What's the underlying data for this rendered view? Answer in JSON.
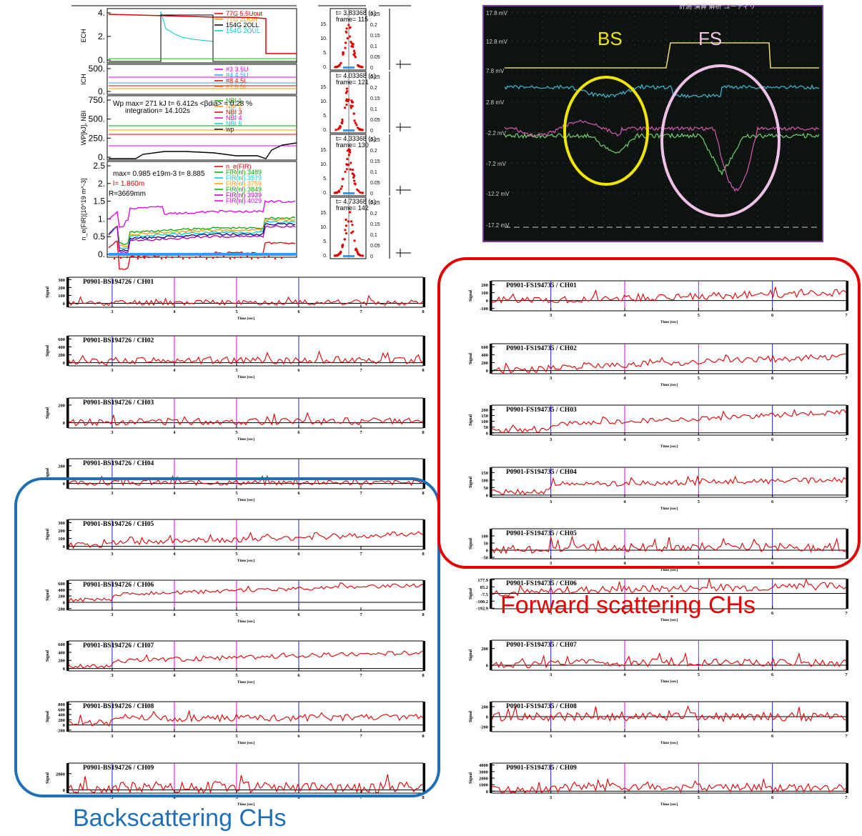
{
  "colors": {
    "signal": "#e00000",
    "marker_blue": "#2222cc",
    "marker_magenta": "#e000e0",
    "fs_box": "#e60000",
    "bs_box": "#1f6fb8",
    "scope_bg": "#0d1410",
    "scope_frame": "#7a3aa8",
    "bs_ellipse": "#f2e600",
    "fs_ellipse": "#f0c0e8"
  },
  "annotations": {
    "forward_label": "Forward scattering CHs",
    "back_label": "Backscattering CHs",
    "bs": "BS",
    "fs": "FS"
  },
  "overview": {
    "ech": {
      "ylabel": "ECH",
      "yticks": [
        "4.",
        "2.",
        "0."
      ],
      "legend": [
        "77G 5.5Uout",
        "77G 2OUR",
        "154G 2OLL",
        "154G 2OUL"
      ],
      "legend_colors": [
        "#e00000",
        "#ff9900",
        "#000000",
        "#00cccc"
      ]
    },
    "ich": {
      "ylabel": "ICH",
      "yticks": [
        "500.",
        "0."
      ],
      "legend": [
        "#3 3.5U",
        "#4 4.5U",
        "#8 4.5L",
        "#7.5 5L"
      ],
      "legend_colors": [
        "#e000e0",
        "#3399ff",
        "#e00000",
        "#ff9900"
      ]
    },
    "nbi": {
      "ylabel": "WP[kJ], NBI",
      "yticks": [
        "750.",
        "500.",
        "250.",
        "0."
      ],
      "text1": "Wp max= 271 kJ t= 6.412s <β",
      "text1b": "dia",
      "text1c": "> = 0.28 %",
      "text2": "integration= 14.102s",
      "legend": [
        "NBI 1",
        "NBI 2",
        "NBI 3",
        "NBI 4",
        "NBI 5",
        "wp"
      ],
      "legend_colors": [
        "#00aa00",
        "#ff9900",
        "#e00000",
        "#e000e0",
        "#00cccc",
        "#000000"
      ]
    },
    "fir": {
      "ylabel": "n_e(FIR)[10^19 m^-3]",
      "yticks": [
        "2.5",
        "2.",
        "1.5",
        "1.",
        "0.5",
        "0."
      ],
      "text1": "max= 0.985 e19m",
      "text1b": "-3",
      "text1c": " t= 8.885",
      "text2": "l= 1.860m",
      "text3": "R=3669mm",
      "legend": [
        "n_e(FIR)",
        "FIR(nl) 3489",
        "FIR(nl) 3579",
        "FIR(nl) 3759",
        "FIR(nl) 3849",
        "FIR(nl) 3939",
        "FIR(nl) 4029"
      ],
      "legend_colors": [
        "#e00000",
        "#00aa00",
        "#00cccc",
        "#ff9900",
        "#00aa00",
        "#aa00aa",
        "#e000e0"
      ]
    }
  },
  "frames": {
    "panels": [
      {
        "t": "t= 3.83368 (s)",
        "frame": "frame= 115"
      },
      {
        "t": "t= 4.03368 (s)",
        "frame": "frame= 121"
      },
      {
        "t": "t= 4.33368 (s)",
        "frame": "frame= 130"
      },
      {
        "t": "t= 4.73368 (s)",
        "frame": "frame= 142"
      }
    ],
    "left_ticks": [
      "15.",
      "10.",
      "5.",
      "0."
    ],
    "right_ticks": [
      "0.25",
      "0.2",
      "0.15",
      "0.1",
      "0.05",
      "0"
    ]
  },
  "scope": {
    "labels": [
      "17.8 mV",
      "12.8 mV",
      "7.8 mV",
      "2.8 mV",
      "-2.2 mV",
      "-7.2 mV",
      "-12.2 mV",
      "-17.2 mV"
    ],
    "menu": "計測   演算   解析   ユーティリ"
  },
  "chart_data": [
    {
      "type": "line",
      "group": "Backscattering",
      "title": "P0901-BS194726 / CH01",
      "xlabel": "Time [sec]",
      "ylabel": "Signal",
      "xlim": [
        2.3,
        8.0
      ],
      "x_ticks": [
        "3",
        "4",
        "5",
        "6",
        "7",
        "8"
      ],
      "y_ticks": [
        "300",
        "200",
        "100",
        "0"
      ],
      "ylim": [
        -50,
        330
      ],
      "baseline": 10,
      "trend": 0,
      "noise": 35,
      "seed": 11,
      "markers": [
        {
          "x": 3.0,
          "color": "blue"
        },
        {
          "x": 4.0,
          "color": "magenta"
        },
        {
          "x": 5.0,
          "color": "magenta"
        },
        {
          "x": 6.0,
          "color": "blue"
        }
      ]
    },
    {
      "type": "line",
      "group": "Backscattering",
      "title": "P0901-BS194726 / CH02",
      "xlabel": "Time [sec]",
      "ylabel": "Signal",
      "xlim": [
        2.3,
        8.0
      ],
      "x_ticks": [
        "3",
        "4",
        "5",
        "6",
        "7",
        "8"
      ],
      "y_ticks": [
        "600",
        "400",
        "200",
        "0"
      ],
      "ylim": [
        -80,
        680
      ],
      "baseline": 60,
      "trend": 0,
      "noise": 90,
      "seed": 12,
      "markers": [
        {
          "x": 3.0,
          "color": "blue"
        },
        {
          "x": 4.0,
          "color": "magenta"
        },
        {
          "x": 5.0,
          "color": "magenta"
        },
        {
          "x": 6.0,
          "color": "blue"
        }
      ]
    },
    {
      "type": "line",
      "group": "Backscattering",
      "title": "P0901-BS194726 / CH03",
      "xlabel": "Time [sec]",
      "ylabel": "Signal",
      "xlim": [
        2.3,
        8.0
      ],
      "x_ticks": [
        "3",
        "4",
        "5",
        "6",
        "7",
        "8"
      ],
      "y_ticks": [
        "200",
        "0"
      ],
      "ylim": [
        -60,
        280
      ],
      "baseline": 15,
      "trend": 0,
      "noise": 40,
      "seed": 13,
      "markers": [
        {
          "x": 3.0,
          "color": "blue"
        },
        {
          "x": 4.0,
          "color": "magenta"
        },
        {
          "x": 5.0,
          "color": "magenta"
        },
        {
          "x": 6.0,
          "color": "blue"
        }
      ]
    },
    {
      "type": "line",
      "group": "Backscattering",
      "title": "P0901-BS194726 / CH04",
      "xlabel": "Time [sec]",
      "ylabel": "Signal",
      "xlim": [
        2.3,
        8.0
      ],
      "x_ticks": [
        "3",
        "4",
        "5",
        "6",
        "7",
        "8"
      ],
      "y_ticks": [
        "200",
        "0"
      ],
      "ylim": [
        -60,
        280
      ],
      "baseline": 10,
      "trend": 0,
      "noise": 30,
      "seed": 14,
      "markers": [
        {
          "x": 3.0,
          "color": "blue"
        },
        {
          "x": 4.0,
          "color": "magenta"
        },
        {
          "x": 5.0,
          "color": "magenta"
        },
        {
          "x": 6.0,
          "color": "blue"
        }
      ]
    },
    {
      "type": "line",
      "group": "Backscattering",
      "title": "P0901-BS194726 / CH05",
      "xlabel": "Time [sec]",
      "ylabel": "Signal",
      "xlim": [
        2.3,
        8.0
      ],
      "x_ticks": [
        "3",
        "4",
        "5",
        "6",
        "7",
        "8"
      ],
      "y_ticks": [
        "300",
        "200",
        "100",
        "0"
      ],
      "ylim": [
        -40,
        340
      ],
      "baseline": 40,
      "trend": 120,
      "noise": 35,
      "seed": 15,
      "markers": [
        {
          "x": 3.0,
          "color": "blue"
        },
        {
          "x": 4.0,
          "color": "magenta"
        },
        {
          "x": 5.0,
          "color": "magenta"
        },
        {
          "x": 6.0,
          "color": "blue"
        }
      ]
    },
    {
      "type": "line",
      "group": "Backscattering",
      "title": "P0901-BS194726 / CH06",
      "xlabel": "Time [sec]",
      "ylabel": "Signal",
      "xlim": [
        2.3,
        8.0
      ],
      "x_ticks": [
        "3",
        "4",
        "5",
        "6",
        "7",
        "8"
      ],
      "y_ticks": [
        "600",
        "400",
        "200",
        "0",
        "-200"
      ],
      "ylim": [
        -250,
        700
      ],
      "baseline": 250,
      "trend": 300,
      "noise": 60,
      "seed": 16,
      "markers": [
        {
          "x": 3.0,
          "color": "blue"
        },
        {
          "x": 4.0,
          "color": "magenta"
        },
        {
          "x": 5.0,
          "color": "magenta"
        },
        {
          "x": 6.0,
          "color": "blue"
        }
      ]
    },
    {
      "type": "line",
      "group": "Backscattering",
      "title": "P0901-BS194726 / CH07",
      "xlabel": "Time [sec]",
      "ylabel": "Signal",
      "xlim": [
        2.3,
        8.0
      ],
      "x_ticks": [
        "3",
        "4",
        "5",
        "6",
        "7",
        "8"
      ],
      "y_ticks": [
        "600",
        "400",
        "200",
        "0"
      ],
      "ylim": [
        -60,
        680
      ],
      "baseline": 180,
      "trend": 220,
      "noise": 55,
      "seed": 17,
      "markers": [
        {
          "x": 3.0,
          "color": "blue"
        },
        {
          "x": 4.0,
          "color": "magenta"
        },
        {
          "x": 5.0,
          "color": "magenta"
        },
        {
          "x": 6.0,
          "color": "blue"
        }
      ]
    },
    {
      "type": "line",
      "group": "Backscattering",
      "title": "P0901-BS194726 / CH08",
      "xlabel": "Time [sec]",
      "ylabel": "Signal",
      "xlim": [
        2.3,
        8.0
      ],
      "x_ticks": [
        "3",
        "4",
        "5",
        "6",
        "7",
        "8"
      ],
      "y_ticks": [
        "800",
        "600",
        "400",
        "200",
        "0",
        "-200"
      ],
      "ylim": [
        -260,
        900
      ],
      "baseline": 250,
      "trend": 50,
      "noise": 130,
      "seed": 18,
      "markers": [
        {
          "x": 3.0,
          "color": "blue"
        },
        {
          "x": 4.0,
          "color": "magenta"
        },
        {
          "x": 5.0,
          "color": "magenta"
        },
        {
          "x": 6.0,
          "color": "blue"
        }
      ]
    },
    {
      "type": "line",
      "group": "Backscattering",
      "title": "P0901-BS194726 / CH09",
      "xlabel": "Time [sec]",
      "ylabel": "Signal",
      "xlim": [
        2.3,
        8.0
      ],
      "x_ticks": [
        "3",
        "4",
        "5",
        "6",
        "7",
        "8"
      ],
      "y_ticks": [
        "2000",
        "0"
      ],
      "ylim": [
        -400,
        3300
      ],
      "baseline": 300,
      "trend": 0,
      "noise": 700,
      "seed": 19,
      "markers": [
        {
          "x": 3.0,
          "color": "blue"
        },
        {
          "x": 4.0,
          "color": "magenta"
        },
        {
          "x": 5.0,
          "color": "magenta"
        },
        {
          "x": 6.0,
          "color": "blue"
        }
      ]
    },
    {
      "type": "line",
      "group": "Forward scattering",
      "title": "P0901-FS194735 / CH01",
      "xlabel": "Time [sec]",
      "ylabel": "Signal",
      "xlim": [
        2.2,
        7.0
      ],
      "x_ticks": [
        "3",
        "4",
        "5",
        "6",
        "7"
      ],
      "y_ticks": [
        "200",
        "100",
        "0",
        "-100"
      ],
      "ylim": [
        -130,
        250
      ],
      "baseline": 10,
      "trend": 90,
      "noise": 45,
      "seed": 21,
      "markers": [
        {
          "x": 3.0,
          "color": "blue"
        },
        {
          "x": 4.0,
          "color": "magenta"
        },
        {
          "x": 5.0,
          "color": "magenta"
        },
        {
          "x": 6.0,
          "color": "blue"
        }
      ]
    },
    {
      "type": "line",
      "group": "Forward scattering",
      "title": "P0901-FS194735 / CH02",
      "xlabel": "Time [sec]",
      "ylabel": "Signal",
      "xlim": [
        2.2,
        7.0
      ],
      "x_ticks": [
        "3",
        "4",
        "5",
        "6",
        "7"
      ],
      "y_ticks": [
        "600",
        "400",
        "200",
        "0"
      ],
      "ylim": [
        -80,
        680
      ],
      "baseline": 80,
      "trend": 280,
      "noise": 80,
      "seed": 22,
      "markers": [
        {
          "x": 3.0,
          "color": "blue"
        },
        {
          "x": 4.0,
          "color": "magenta"
        },
        {
          "x": 5.0,
          "color": "magenta"
        },
        {
          "x": 6.0,
          "color": "blue"
        }
      ]
    },
    {
      "type": "line",
      "group": "Forward scattering",
      "title": "P0901-FS194735 / CH03",
      "xlabel": "Time [sec]",
      "ylabel": "Signal",
      "xlim": [
        2.2,
        7.0
      ],
      "x_ticks": [
        "3",
        "4",
        "5",
        "6",
        "7"
      ],
      "y_ticks": [
        "200",
        "150",
        "100",
        "50",
        "0"
      ],
      "ylim": [
        -20,
        240
      ],
      "baseline": 70,
      "trend": 110,
      "noise": 22,
      "seed": 23,
      "markers": [
        {
          "x": 3.0,
          "color": "blue"
        },
        {
          "x": 4.0,
          "color": "magenta"
        },
        {
          "x": 5.0,
          "color": "magenta"
        },
        {
          "x": 6.0,
          "color": "blue"
        }
      ]
    },
    {
      "type": "line",
      "group": "Forward scattering",
      "title": "P0901-FS194735 / CH04",
      "xlabel": "Time [sec]",
      "ylabel": "Signal",
      "xlim": [
        2.2,
        7.0
      ],
      "x_ticks": [
        "3",
        "4",
        "5",
        "6",
        "7"
      ],
      "y_ticks": [
        "150",
        "100",
        "50",
        "0"
      ],
      "ylim": [
        -15,
        185
      ],
      "baseline": 70,
      "trend": 30,
      "noise": 18,
      "seed": 24,
      "markers": [
        {
          "x": 3.0,
          "color": "blue"
        },
        {
          "x": 4.0,
          "color": "magenta"
        },
        {
          "x": 5.0,
          "color": "magenta"
        },
        {
          "x": 6.0,
          "color": "blue"
        }
      ]
    },
    {
      "type": "line",
      "group": "Forward scattering",
      "title": "P0901-FS194735 / CH05",
      "xlabel": "Time [sec]",
      "ylabel": "Signal",
      "xlim": [
        2.2,
        7.0
      ],
      "x_ticks": [
        "3",
        "4",
        "5",
        "6",
        "7"
      ],
      "y_ticks": [
        "100",
        "50",
        "0",
        "-50"
      ],
      "ylim": [
        -60,
        150
      ],
      "baseline": 20,
      "trend": 0,
      "noise": 30,
      "seed": 25,
      "markers": [
        {
          "x": 3.0,
          "color": "blue"
        },
        {
          "x": 4.0,
          "color": "magenta"
        },
        {
          "x": 5.0,
          "color": "magenta"
        },
        {
          "x": 6.0,
          "color": "blue"
        }
      ]
    },
    {
      "type": "line",
      "group": "Forward scattering",
      "title": "P0901-FS194735 / CH06",
      "xlabel": "Time [sec]",
      "ylabel": "Signal",
      "xlim": [
        2.2,
        7.0
      ],
      "x_ticks": [
        "3",
        "4",
        "5",
        "6",
        "7"
      ],
      "y_ticks": [
        "177.9",
        "85.2",
        "-7.5",
        "-100.2",
        "-192.9"
      ],
      "ylim": [
        -200,
        190
      ],
      "baseline": 40,
      "trend": 60,
      "noise": 50,
      "seed": 26,
      "markers": [
        {
          "x": 3.0,
          "color": "blue"
        },
        {
          "x": 4.0,
          "color": "magenta"
        },
        {
          "x": 5.0,
          "color": "magenta"
        },
        {
          "x": 6.0,
          "color": "blue"
        }
      ]
    },
    {
      "type": "line",
      "group": "Forward scattering",
      "title": "P0901-FS194735 / CH07",
      "xlabel": "Time [sec]",
      "ylabel": "Signal",
      "xlim": [
        2.2,
        7.0
      ],
      "x_ticks": [
        "3",
        "4",
        "5",
        "6",
        "7"
      ],
      "y_ticks": [
        "200",
        "0"
      ],
      "ylim": [
        -60,
        300
      ],
      "baseline": 30,
      "trend": 0,
      "noise": 45,
      "seed": 27,
      "markers": [
        {
          "x": 3.0,
          "color": "blue"
        },
        {
          "x": 4.0,
          "color": "magenta"
        },
        {
          "x": 5.0,
          "color": "magenta"
        },
        {
          "x": 6.0,
          "color": "blue"
        }
      ]
    },
    {
      "type": "line",
      "group": "Forward scattering",
      "title": "P0901-FS194735 / CH08",
      "xlabel": "Time [sec]",
      "ylabel": "Signal",
      "xlim": [
        2.2,
        7.0
      ],
      "x_ticks": [
        "3",
        "4",
        "5",
        "6",
        "7"
      ],
      "y_ticks": [
        "200",
        "0",
        "-200"
      ],
      "ylim": [
        -300,
        300
      ],
      "baseline": 0,
      "trend": 0,
      "noise": 90,
      "seed": 28,
      "markers": [
        {
          "x": 3.0,
          "color": "blue"
        },
        {
          "x": 4.0,
          "color": "magenta"
        },
        {
          "x": 5.0,
          "color": "magenta"
        },
        {
          "x": 6.0,
          "color": "blue"
        }
      ]
    },
    {
      "type": "line",
      "group": "Forward scattering",
      "title": "P0901-FS194735 / CH09",
      "xlabel": "Time [sec]",
      "ylabel": "Signal",
      "xlim": [
        2.2,
        7.0
      ],
      "x_ticks": [
        "3",
        "4",
        "5",
        "6",
        "7"
      ],
      "y_ticks": [
        "4000",
        "3000",
        "2000",
        "1000",
        "0"
      ],
      "ylim": [
        -300,
        4300
      ],
      "baseline": 500,
      "trend": 0,
      "noise": 600,
      "seed": 29,
      "markers": [
        {
          "x": 3.0,
          "color": "blue"
        },
        {
          "x": 4.0,
          "color": "magenta"
        },
        {
          "x": 5.0,
          "color": "magenta"
        },
        {
          "x": 6.0,
          "color": "blue"
        }
      ]
    }
  ]
}
